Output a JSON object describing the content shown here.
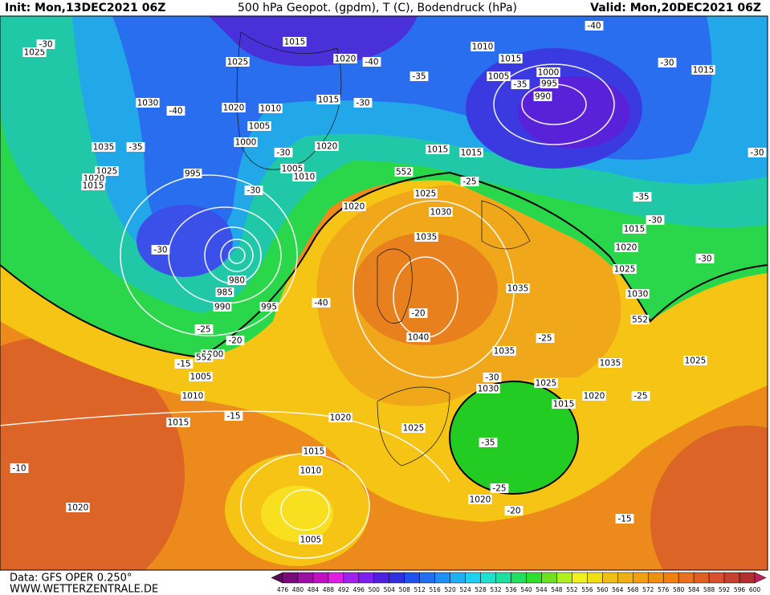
{
  "header": {
    "init": "Init: Mon,13DEC2021 06Z",
    "title": "500 hPa Geopot. (gpdm), T (C), Bodendruck (hPa)",
    "valid": "Valid: Mon,20DEC2021 06Z"
  },
  "footer": {
    "source": "Data: GFS OPER 0.250°",
    "website": "WWW.WETTERZENTRALE.DE"
  },
  "colorbar": {
    "labels": [
      476,
      480,
      484,
      488,
      492,
      496,
      500,
      504,
      508,
      512,
      516,
      520,
      524,
      528,
      532,
      536,
      540,
      544,
      548,
      552,
      556,
      560,
      564,
      568,
      572,
      576,
      580,
      584,
      588,
      592,
      596,
      600
    ]
  },
  "contour_labels": [
    1025,
    -30,
    1025,
    1015,
    1020,
    -40,
    1010,
    1015,
    -40,
    -30,
    1015,
    1000,
    1005,
    -35,
    995,
    990,
    -35,
    1030,
    -40,
    1020,
    1010,
    1015,
    -30,
    1005,
    1000,
    -30,
    1020,
    1015,
    1015,
    1035,
    -35,
    -30,
    1025,
    995,
    1005,
    1010,
    1020,
    1015,
    552,
    -25,
    1025,
    -30,
    1020,
    -35,
    1030,
    -30,
    1015,
    1035,
    -30,
    1020,
    -30,
    980,
    1025,
    1035,
    985,
    1030,
    -40,
    990,
    995,
    -20,
    552,
    -25,
    1040,
    -20,
    -25,
    1000,
    1035,
    552,
    -15,
    1035,
    1025,
    1005,
    -30,
    1025,
    1030,
    1010,
    1020,
    -25,
    1015,
    -15,
    1020,
    1015,
    1025,
    -35,
    1015,
    -10,
    1010,
    -25,
    1020,
    -20,
    1020,
    -15,
    1005
  ]
}
